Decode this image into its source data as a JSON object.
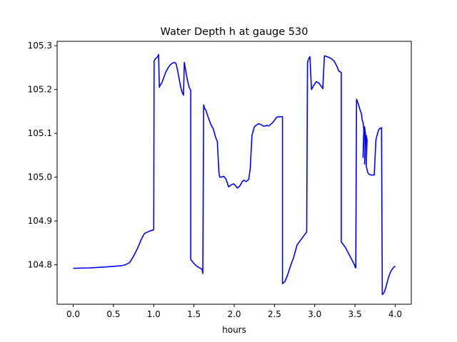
{
  "chart_data": {
    "type": "line",
    "title": "Water Depth h at gauge 530",
    "xlabel": "hours",
    "ylabel": "",
    "xlim": [
      -0.2,
      4.2
    ],
    "ylim": [
      104.71,
      105.31
    ],
    "xticks": [
      0.0,
      0.5,
      1.0,
      1.5,
      2.0,
      2.5,
      3.0,
      3.5,
      4.0
    ],
    "xtick_labels": [
      "0.0",
      "0.5",
      "1.0",
      "1.5",
      "2.0",
      "2.5",
      "3.0",
      "3.5",
      "4.0"
    ],
    "yticks": [
      104.8,
      104.9,
      105.0,
      105.1,
      105.2,
      105.3
    ],
    "ytick_labels": [
      "104.8",
      "104.9",
      "105.0",
      "105.1",
      "105.2",
      "105.3"
    ],
    "grid": false,
    "line_color": "#0000ff",
    "series": [
      {
        "x": [
          0.0,
          0.2,
          0.4,
          0.6,
          0.65,
          0.7,
          0.75,
          0.8,
          0.85,
          0.88,
          0.9,
          0.95,
          1.0,
          1.005,
          1.02,
          1.03,
          1.05,
          1.06,
          1.07,
          1.08,
          1.1,
          1.12,
          1.15,
          1.18,
          1.2,
          1.23,
          1.26,
          1.28,
          1.3,
          1.33,
          1.35,
          1.37,
          1.38,
          1.4,
          1.42,
          1.44,
          1.46,
          1.46,
          1.5,
          1.54,
          1.6,
          1.61,
          1.62,
          1.63,
          1.65,
          1.68,
          1.71,
          1.74,
          1.77,
          1.79,
          1.81,
          1.82,
          1.84,
          1.87,
          1.9,
          1.93,
          1.96,
          1.99,
          2.01,
          2.04,
          2.07,
          2.1,
          2.12,
          2.15,
          2.18,
          2.2,
          2.22,
          2.25,
          2.27,
          2.3,
          2.33,
          2.37,
          2.4,
          2.43,
          2.45,
          2.48,
          2.5,
          2.53,
          2.57,
          2.6,
          2.6,
          2.63,
          2.66,
          2.7,
          2.74,
          2.78,
          2.82,
          2.86,
          2.9,
          2.91,
          2.92,
          2.93,
          2.94,
          2.96,
          2.99,
          3.02,
          3.05,
          3.07,
          3.09,
          3.1,
          3.12,
          3.15,
          3.18,
          3.21,
          3.24,
          3.27,
          3.3,
          3.32,
          3.33,
          3.33,
          3.38,
          3.42,
          3.46,
          3.49,
          3.5,
          3.51,
          3.52,
          3.54,
          3.56,
          3.58,
          3.59,
          3.6,
          3.61,
          3.6,
          3.62,
          3.63,
          3.62,
          3.64,
          3.65,
          3.64,
          3.66,
          3.68,
          3.7,
          3.73,
          3.74,
          3.76,
          3.78,
          3.8,
          3.83,
          3.83,
          3.84,
          3.86,
          3.88,
          3.9,
          3.92,
          3.94,
          3.96,
          3.98,
          4.0
        ],
        "y": [
          104.792,
          104.793,
          104.795,
          104.798,
          104.8,
          104.805,
          104.82,
          104.838,
          104.86,
          104.87,
          104.873,
          104.877,
          104.88,
          105.265,
          105.27,
          105.272,
          105.275,
          105.28,
          105.205,
          105.21,
          105.215,
          105.225,
          105.24,
          105.25,
          105.255,
          105.26,
          105.262,
          105.258,
          105.24,
          105.21,
          105.195,
          105.187,
          105.262,
          105.24,
          105.22,
          105.205,
          105.198,
          104.812,
          104.803,
          104.796,
          104.79,
          104.78,
          105.165,
          105.158,
          105.152,
          105.135,
          105.12,
          105.11,
          105.09,
          105.082,
          105.01,
          105.0,
          105.0,
          105.002,
          104.995,
          104.978,
          104.982,
          104.985,
          104.982,
          104.975,
          104.98,
          104.99,
          104.993,
          104.99,
          104.995,
          105.02,
          105.095,
          105.115,
          105.118,
          105.122,
          105.12,
          105.116,
          105.118,
          105.117,
          105.12,
          105.125,
          105.13,
          105.137,
          105.138,
          105.138,
          104.757,
          104.762,
          104.775,
          104.798,
          104.818,
          104.845,
          104.855,
          104.865,
          104.875,
          105.26,
          105.268,
          105.272,
          105.275,
          105.2,
          105.21,
          105.218,
          105.215,
          105.21,
          105.205,
          105.202,
          105.277,
          105.275,
          105.273,
          105.27,
          105.265,
          105.255,
          105.242,
          105.24,
          105.239,
          104.852,
          104.84,
          104.826,
          104.812,
          104.801,
          104.796,
          104.793,
          105.178,
          105.168,
          105.155,
          105.145,
          105.13,
          105.125,
          105.11,
          105.045,
          105.115,
          105.1,
          105.03,
          105.095,
          105.085,
          105.025,
          105.01,
          105.006,
          105.005,
          105.005,
          105.005,
          105.085,
          105.1,
          105.11,
          105.113,
          105.112,
          104.732,
          104.736,
          104.746,
          104.76,
          104.773,
          104.783,
          104.789,
          104.794,
          104.797
        ]
      }
    ]
  }
}
